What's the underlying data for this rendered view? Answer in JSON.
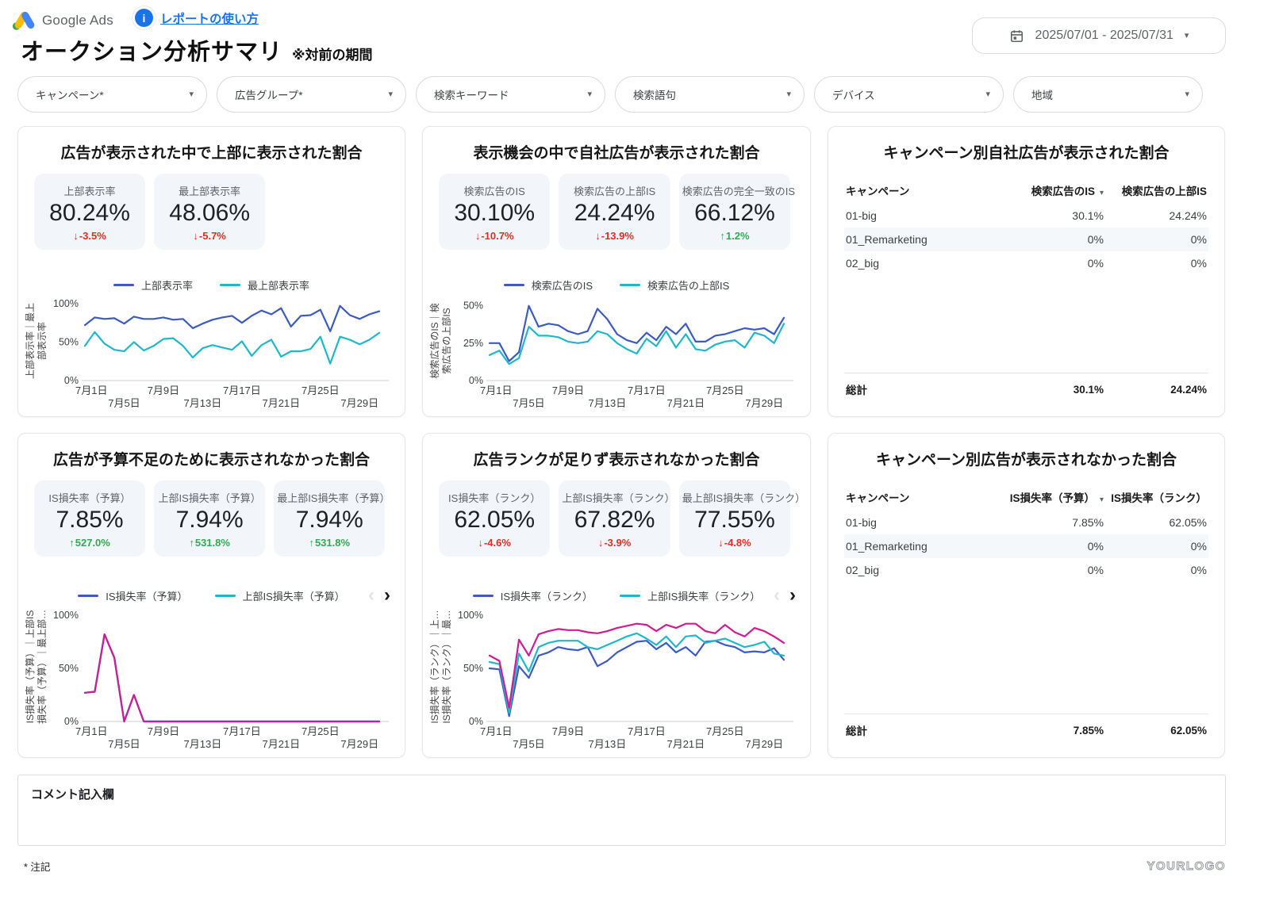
{
  "colors": {
    "blue": "#3c5bc0",
    "teal": "#1fb8ca",
    "magenta": "#d01b96",
    "red": "#d93025",
    "green": "#34a853",
    "link": "#1a73e8"
  },
  "icons": {
    "caret": "▾",
    "sort": "▾",
    "prev": "‹",
    "next": "›",
    "arrow_up": "↑",
    "arrow_down": "↓",
    "info": "i"
  },
  "header": {
    "logo_text": "Google Ads",
    "help_link": "レポートの使い方",
    "title": "オークション分析サマリ",
    "subtitle": "※対前の期間",
    "date_range": "2025/07/01 - 2025/07/31"
  },
  "filters": [
    "キャンペーン*",
    "広告グループ*",
    "検索キーワード",
    "検索語句",
    "デバイス",
    "地域"
  ],
  "panels": [
    {
      "title": "広告が表示された中で上部に表示された割合",
      "scorecards": [
        {
          "label": "上部表示率",
          "value": "80.24%",
          "delta": "-3.5%",
          "trend": "down"
        },
        {
          "label": "最上部表示率",
          "value": "48.06%",
          "delta": "-5.7%",
          "trend": "down"
        }
      ],
      "chart_ref": 0
    },
    {
      "title": "表示機会の中で自社広告が表示された割合",
      "scorecards": [
        {
          "label": "検索広告のIS",
          "value": "30.10%",
          "delta": "-10.7%",
          "trend": "down"
        },
        {
          "label": "検索広告の上部IS",
          "value": "24.24%",
          "delta": "-13.9%",
          "trend": "down"
        },
        {
          "label": "検索広告の完全一致のIS",
          "value": "66.12%",
          "delta": "1.2%",
          "trend": "up"
        }
      ],
      "chart_ref": 1
    },
    {
      "title": "キャンペーン別自社広告が表示された割合",
      "chart_ref": 4
    },
    {
      "title": "広告が予算不足のために表示されなかった割合",
      "scorecards": [
        {
          "label": "IS損失率（予算）",
          "value": "7.85%",
          "delta": "527.0%",
          "trend": "up"
        },
        {
          "label": "上部IS損失率（予算）",
          "value": "7.94%",
          "delta": "531.8%",
          "trend": "up"
        },
        {
          "label": "最上部IS損失率（予算）",
          "value": "7.94%",
          "delta": "531.8%",
          "trend": "up"
        }
      ],
      "chart_ref": 2
    },
    {
      "title": "広告ランクが足りず表示されなかった割合",
      "scorecards": [
        {
          "label": "IS損失率（ランク）",
          "value": "62.05%",
          "delta": "-4.6%",
          "trend": "down"
        },
        {
          "label": "上部IS損失率（ランク）",
          "value": "67.82%",
          "delta": "-3.9%",
          "trend": "down"
        },
        {
          "label": "最上部IS損失率（ランク）",
          "value": "77.55%",
          "delta": "-4.8%",
          "trend": "down"
        }
      ],
      "chart_ref": 3
    },
    {
      "title": "キャンペーン別広告が表示されなかった割合",
      "chart_ref": 5
    }
  ],
  "chart_data": [
    {
      "type": "line",
      "title": "広告が表示された中で上部に表示された割合",
      "grid": false,
      "legend_position": "top",
      "legend_visible": 2,
      "paginated": false,
      "ylim": [
        0,
        103
      ],
      "y_ticks": [
        {
          "v": 0,
          "label": "0%"
        },
        {
          "v": 50,
          "label": "50%"
        },
        {
          "v": 100,
          "label": "100%"
        }
      ],
      "x_ticks": [
        {
          "day": 1,
          "label": "7月1日"
        },
        {
          "day": 5,
          "label": "7月5日"
        },
        {
          "day": 9,
          "label": "7月9日"
        },
        {
          "day": 13,
          "label": "7月13日"
        },
        {
          "day": 17,
          "label": "7月17日"
        },
        {
          "day": 21,
          "label": "7月21日"
        },
        {
          "day": 25,
          "label": "7月25日"
        },
        {
          "day": 29,
          "label": "7月29日"
        }
      ],
      "ylabel_lines": [
        "上部表示率｜最上",
        "部表示率"
      ],
      "series": [
        {
          "name": "上部表示率",
          "color": "blue",
          "values": [
            72,
            82,
            80,
            81,
            74,
            83,
            80,
            80,
            82,
            79,
            80,
            68,
            74,
            79,
            82,
            84,
            75,
            84,
            91,
            86,
            94,
            70,
            84,
            85,
            92,
            64,
            97,
            85,
            80,
            86,
            90
          ]
        },
        {
          "name": "最上部表示率",
          "color": "teal",
          "values": [
            45,
            63,
            48,
            40,
            38,
            50,
            39,
            45,
            54,
            55,
            45,
            30,
            42,
            46,
            43,
            40,
            51,
            32,
            46,
            53,
            31,
            38,
            38,
            41,
            57,
            22,
            57,
            53,
            47,
            53,
            62
          ]
        }
      ]
    },
    {
      "type": "line",
      "title": "表示機会の中で自社広告が表示された割合",
      "grid": false,
      "legend_position": "top",
      "legend_visible": 2,
      "paginated": false,
      "ylim": [
        0,
        53
      ],
      "y_ticks": [
        {
          "v": 0,
          "label": "0%"
        },
        {
          "v": 25,
          "label": "25%"
        },
        {
          "v": 50,
          "label": "50%"
        }
      ],
      "x_ticks": [
        {
          "day": 1,
          "label": "7月1日"
        },
        {
          "day": 5,
          "label": "7月5日"
        },
        {
          "day": 9,
          "label": "7月9日"
        },
        {
          "day": 13,
          "label": "7月13日"
        },
        {
          "day": 17,
          "label": "7月17日"
        },
        {
          "day": 21,
          "label": "7月21日"
        },
        {
          "day": 25,
          "label": "7月25日"
        },
        {
          "day": 29,
          "label": "7月29日"
        }
      ],
      "ylabel_lines": [
        "検索広告のIS｜検",
        "索広告の上部IS"
      ],
      "series": [
        {
          "name": "検索広告のIS",
          "color": "blue",
          "values": [
            25,
            25,
            13,
            19,
            50,
            36,
            38,
            37,
            33,
            31,
            33,
            48,
            41,
            31,
            27,
            25,
            32,
            27,
            36,
            31,
            38,
            26,
            26,
            30,
            31,
            33,
            35,
            34,
            35,
            31,
            42
          ]
        },
        {
          "name": "検索広告の上部IS",
          "color": "teal",
          "values": [
            17,
            20,
            11,
            15,
            36,
            30,
            30,
            29,
            26,
            25,
            26,
            33,
            31,
            25,
            21,
            18,
            28,
            23,
            33,
            22,
            31,
            21,
            20,
            24,
            26,
            27,
            22,
            32,
            30,
            25,
            38
          ]
        }
      ]
    },
    {
      "type": "line",
      "title": "広告が予算不足のために表示されなかった割合",
      "grid": false,
      "legend_position": "top",
      "legend_visible": 2,
      "paginated": true,
      "ylim": [
        0,
        103
      ],
      "y_ticks": [
        {
          "v": 0,
          "label": "0%"
        },
        {
          "v": 50,
          "label": "50%"
        },
        {
          "v": 100,
          "label": "100%"
        }
      ],
      "x_ticks": [
        {
          "day": 1,
          "label": "7月1日"
        },
        {
          "day": 5,
          "label": "7月5日"
        },
        {
          "day": 9,
          "label": "7月9日"
        },
        {
          "day": 13,
          "label": "7月13日"
        },
        {
          "day": 17,
          "label": "7月17日"
        },
        {
          "day": 21,
          "label": "7月21日"
        },
        {
          "day": 25,
          "label": "7月25日"
        },
        {
          "day": 29,
          "label": "7月29日"
        }
      ],
      "ylabel_lines": [
        "IS損失率（予算）｜上部IS",
        "損失率（予算）｜最上部…"
      ],
      "series": [
        {
          "name": "IS損失率（予算）",
          "color": "blue",
          "values": [
            27,
            28,
            82,
            60,
            0,
            25,
            0,
            0,
            0,
            0,
            0,
            0,
            0,
            0,
            0,
            0,
            0,
            0,
            0,
            0,
            0,
            0,
            0,
            0,
            0,
            0,
            0,
            0,
            0,
            0,
            0
          ]
        },
        {
          "name": "上部IS損失率（予算）",
          "color": "teal",
          "values": [
            27,
            28,
            82,
            60,
            0,
            25,
            0,
            0,
            0,
            0,
            0,
            0,
            0,
            0,
            0,
            0,
            0,
            0,
            0,
            0,
            0,
            0,
            0,
            0,
            0,
            0,
            0,
            0,
            0,
            0,
            0
          ]
        },
        {
          "name": "最上部IS損失率（予算）",
          "color": "magenta",
          "values": [
            27,
            28,
            82,
            60,
            0,
            25,
            0,
            0,
            0,
            0,
            0,
            0,
            0,
            0,
            0,
            0,
            0,
            0,
            0,
            0,
            0,
            0,
            0,
            0,
            0,
            0,
            0,
            0,
            0,
            0,
            0
          ]
        }
      ]
    },
    {
      "type": "line",
      "title": "広告ランクが足りず表示されなかった割合",
      "grid": false,
      "legend_position": "top",
      "legend_visible": 2,
      "paginated": true,
      "ylim": [
        0,
        103
      ],
      "y_ticks": [
        {
          "v": 0,
          "label": "0%"
        },
        {
          "v": 50,
          "label": "50%"
        },
        {
          "v": 100,
          "label": "100%"
        }
      ],
      "x_ticks": [
        {
          "day": 1,
          "label": "7月1日"
        },
        {
          "day": 5,
          "label": "7月5日"
        },
        {
          "day": 9,
          "label": "7月9日"
        },
        {
          "day": 13,
          "label": "7月13日"
        },
        {
          "day": 17,
          "label": "7月17日"
        },
        {
          "day": 21,
          "label": "7月21日"
        },
        {
          "day": 25,
          "label": "7月25日"
        },
        {
          "day": 29,
          "label": "7月29日"
        }
      ],
      "ylabel_lines": [
        "IS損失率（ランク）｜上…",
        "IS損失率（ランク）｜最…"
      ],
      "series": [
        {
          "name": "IS損失率（ランク）",
          "color": "blue",
          "values": [
            50,
            49,
            5,
            52,
            41,
            62,
            65,
            70,
            68,
            67,
            70,
            52,
            57,
            65,
            70,
            75,
            76,
            68,
            74,
            65,
            70,
            62,
            75,
            76,
            72,
            70,
            65,
            66,
            65,
            69,
            58
          ]
        },
        {
          "name": "上部IS損失率（ランク）",
          "color": "teal",
          "values": [
            56,
            54,
            8,
            64,
            47,
            70,
            74,
            76,
            76,
            76,
            70,
            68,
            72,
            76,
            80,
            83,
            78,
            72,
            80,
            70,
            80,
            81,
            74,
            76,
            78,
            74,
            70,
            72,
            75,
            64,
            62
          ]
        },
        {
          "name": "最上部IS損失率（ランク）",
          "color": "magenta",
          "values": [
            62,
            57,
            13,
            77,
            62,
            82,
            85,
            87,
            86,
            86,
            84,
            83,
            85,
            88,
            90,
            92,
            91,
            85,
            91,
            88,
            92,
            92,
            85,
            83,
            91,
            84,
            80,
            88,
            85,
            80,
            74
          ]
        }
      ]
    },
    {
      "type": "table",
      "title": "キャンペーン別自社広告が表示された割合",
      "columns": [
        "キャンペーン",
        "検索広告のIS",
        "検索広告の上部IS"
      ],
      "sort_col": 1,
      "rows": [
        [
          "01-big",
          "30.1%",
          "24.24%"
        ],
        [
          "01_Remarketing",
          "0%",
          "0%"
        ],
        [
          "02_big",
          "0%",
          "0%"
        ]
      ],
      "total": [
        "総計",
        "30.1%",
        "24.24%"
      ]
    },
    {
      "type": "table",
      "title": "キャンペーン別広告が表示されなかった割合",
      "columns": [
        "キャンペーン",
        "IS損失率（予算）",
        "IS損失率（ランク）"
      ],
      "sort_col": 1,
      "rows": [
        [
          "01-big",
          "7.85%",
          "62.05%"
        ],
        [
          "01_Remarketing",
          "0%",
          "0%"
        ],
        [
          "02_big",
          "0%",
          "0%"
        ]
      ],
      "total": [
        "総計",
        "7.85%",
        "62.05%"
      ]
    }
  ],
  "comment_label": "コメント記入欄",
  "footnote": "* 注記",
  "watermark": "YOURLOGO"
}
